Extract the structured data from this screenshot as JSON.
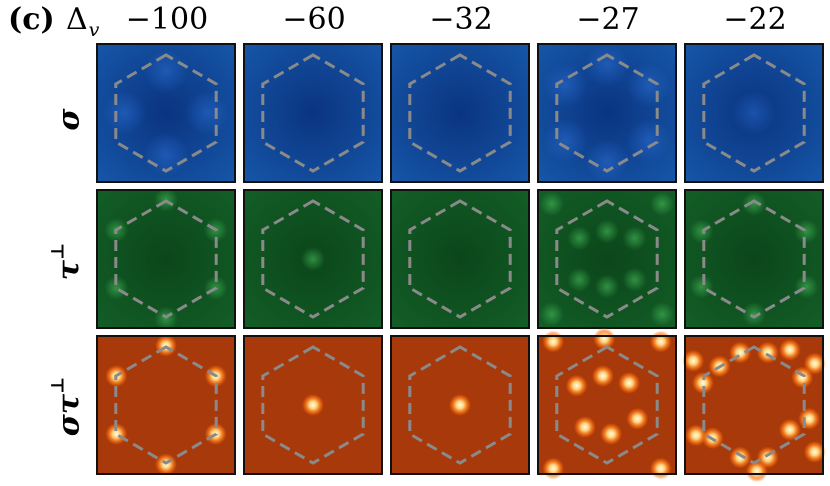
{
  "panel_label": "(c)",
  "parameter_symbol": "Δ",
  "parameter_subscript": "v",
  "columns": [
    "−100",
    "−60",
    "−32",
    "−27",
    "−22"
  ],
  "rows": [
    {
      "label_base": "σ",
      "label_sup": "",
      "theme": "blue"
    },
    {
      "label_base": "τ",
      "label_sup": "⊥",
      "theme": "green"
    },
    {
      "label_base": "στ",
      "label_sup": "⊥",
      "theme": "orange"
    }
  ],
  "colors": {
    "blue_bg": "#0d3b87",
    "green_bg": "#0b4a1c",
    "orange_bg": "#a8390a",
    "hexagon_dash": "#8a8a8a",
    "peak_core": "#fff6d0",
    "peak_halo": "#ff9a2a",
    "frame": "#111111"
  }
}
